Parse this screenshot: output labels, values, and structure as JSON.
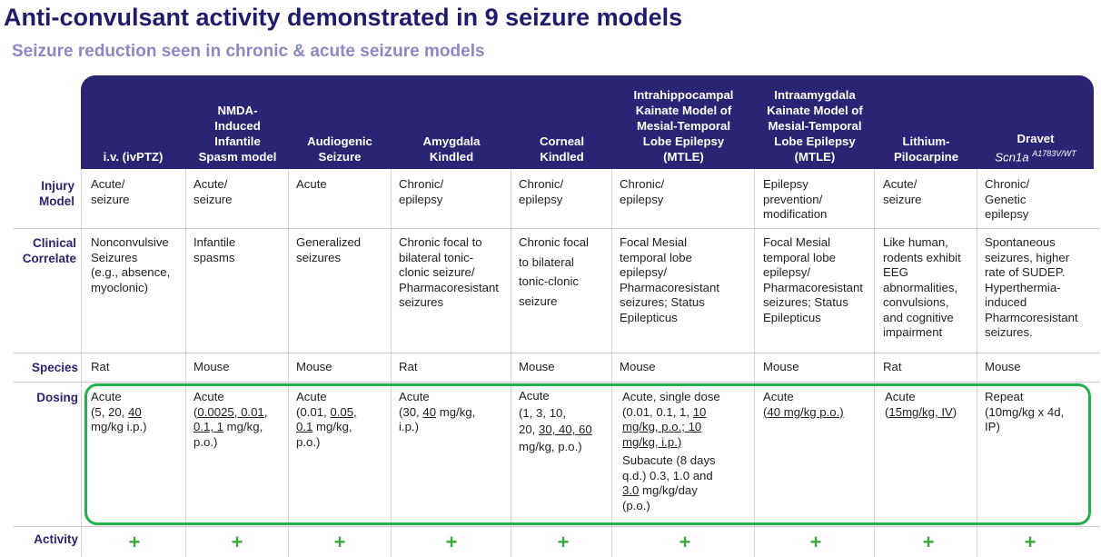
{
  "title": "Anti-convulsant activity demonstrated in 9 seizure models",
  "subtitle": "Seizure reduction seen in chronic & acute seizure models",
  "row_labels": {
    "injury_model": "Injury Model",
    "clinical_correlate": "Clinical Correlate",
    "species": "Species",
    "dosing": "Dosing",
    "activity": "Activity"
  },
  "columns": [
    {
      "header": "i.v. (ivPTZ)",
      "injury": "Acute/\nseizure",
      "clinical": "Nonconvulsive\nSeizures\n(e.g., absence,\nmyoclonic)",
      "species": "Rat",
      "dosing": {
        "p1": "Acute\n(5, 20, ",
        "u1": "40",
        "p2": "\nmg/kg i.p.)"
      },
      "activity": "+"
    },
    {
      "header": "NMDA-\nInduced\nInfantile\nSpasm model",
      "injury": "Acute/\nseizure",
      "clinical": "Infantile\nspasms",
      "species": "Mouse",
      "dosing": {
        "p1": "Acute\n(",
        "u1": "0.0025, 0.01,\n0.1, 1",
        "p2": " mg/kg,\np.o.)"
      },
      "activity": "+"
    },
    {
      "header": "Audiogenic\nSeizure",
      "injury": "Acute",
      "clinical": "Generalized\nseizures",
      "species": "Mouse",
      "dosing": {
        "p1": "Acute\n(0.01, ",
        "u1": "0.05,\n0.1",
        "p2": " mg/kg,\np.o.)"
      },
      "activity": "+"
    },
    {
      "header": "Amygdala\nKindled",
      "injury": "Chronic/\nepilepsy",
      "clinical": "Chronic focal to\nbilateral tonic-\nclonic seizure/\nPharmacoresistant\nseizures",
      "species": "Rat",
      "dosing": {
        "p1": "Acute\n(30, ",
        "u1": "40",
        "p2": " mg/kg,\ni.p.)"
      },
      "activity": "+"
    },
    {
      "header": "Corneal\nKindled",
      "injury": "Chronic/\nepilepsy",
      "clinical": "Chronic focal\nto bilateral\ntonic-clonic\nseizure",
      "species": "Mouse",
      "dosing": {
        "p1": "Acute\n(1, 3, 10,\n20, ",
        "u1": "30, 40, 60",
        "p2": "\nmg/kg, p.o.)"
      },
      "activity": "+"
    },
    {
      "header": "Intrahippocampal\nKainate Model of\nMesial-Temporal\nLobe Epilepsy\n(MTLE)",
      "injury": "Chronic/\nepilepsy",
      "clinical": "Focal Mesial\ntemporal lobe\nepilepsy/\nPharmacoresistant\nseizures; Status\nEpilepticus",
      "species": "Mouse",
      "dosing": {
        "p1": "Acute, single dose\n(0.01, 0.1, 1, ",
        "u1": "10\nmg/kg, p.o.; 10\nmg/kg, i.p.)",
        "p2": "",
        "p3": "Subacute (8 days\nq.d.) 0.3, 1.0 and\n",
        "u2": "3.0",
        "p4": " mg/kg/day\n(p.o.)"
      },
      "activity": "+"
    },
    {
      "header": "Intraamygdala\nKainate Model of\nMesial-Temporal\nLobe Epilepsy\n(MTLE)",
      "injury": "Epilepsy\nprevention/\nmodification",
      "clinical": "Focal Mesial\ntemporal lobe\nepilepsy/\nPharmacoresistant\nseizures; Status\nEpilepticus",
      "species": "Mouse",
      "dosing": {
        "p1": "Acute\n",
        "u1": "(40 mg/kg p.o.)",
        "p2": ""
      },
      "activity": "+"
    },
    {
      "header": "Lithium-\nPilocarpine",
      "injury": "Acute/\nseizure",
      "clinical": "Like human,\nrodents exhibit\nEEG\nabnormalities,\nconvulsions,\nand cognitive\nimpairment",
      "species": "Rat",
      "dosing": {
        "p1": "Acute\n(",
        "u1": "15mg/kg, IV",
        "p2": ")"
      },
      "activity": "+"
    },
    {
      "header": "Dravet",
      "header_sub": "Scn1a",
      "header_sup": "A1783V/WT",
      "injury": "Chronic/\nGenetic\nepilepsy",
      "clinical": "Spontaneous\nseizures, higher\nrate of SUDEP.\nHyperthermia-\ninduced\nPharmcoresistant\nseizures.",
      "species": "Mouse",
      "dosing": {
        "p1": "Repeat\n(10mg/kg x 4d,\nIP)",
        "u1": "",
        "p2": ""
      },
      "activity": "+"
    }
  ]
}
